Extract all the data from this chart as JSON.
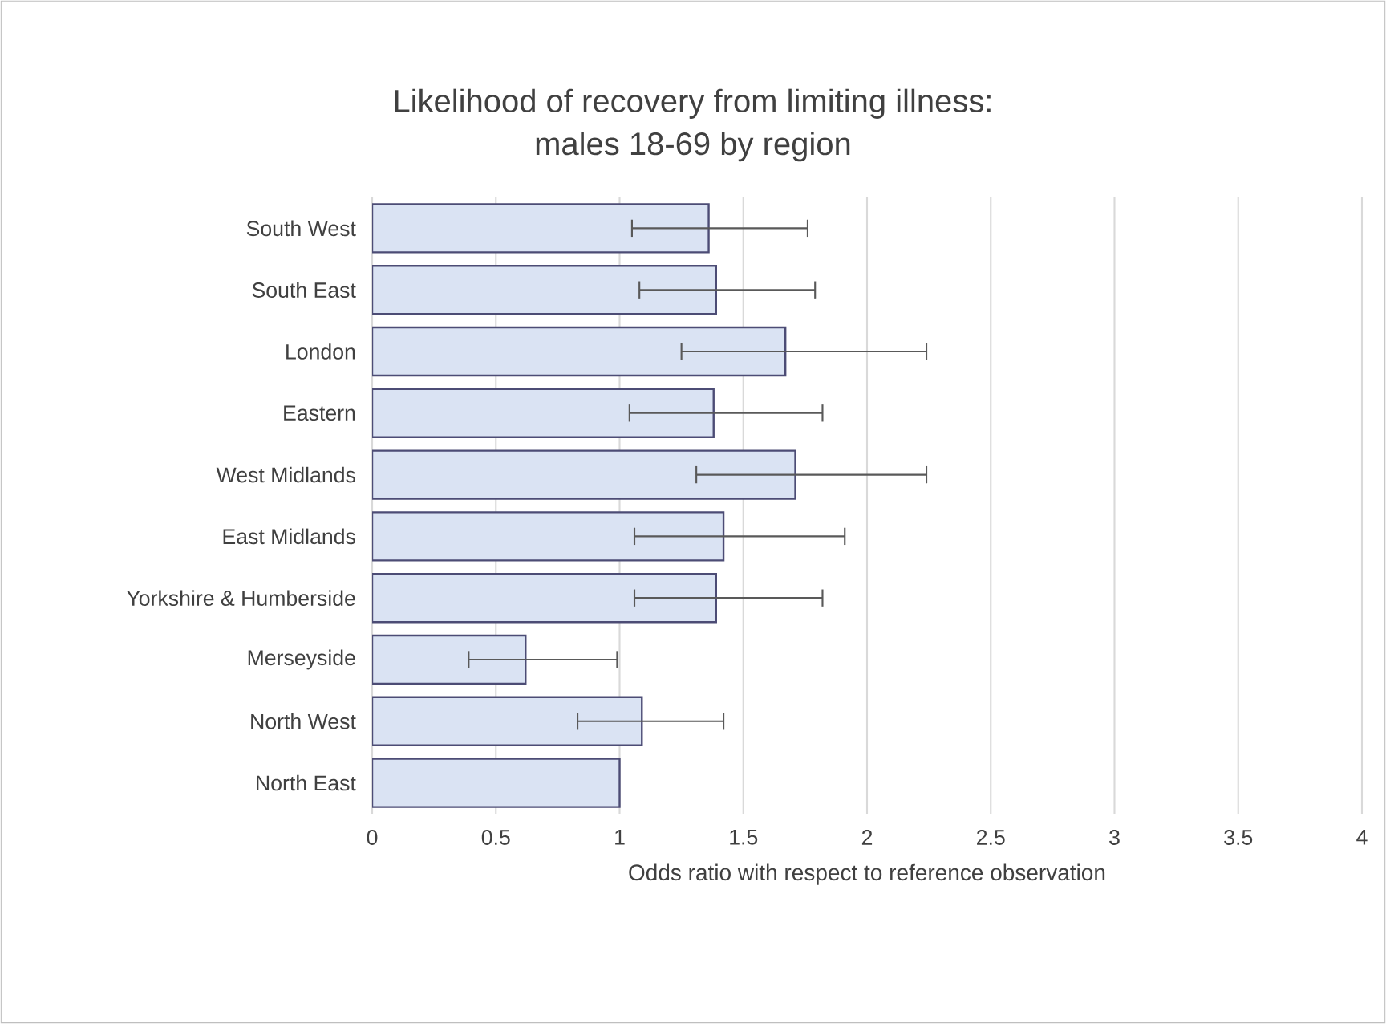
{
  "chart_data": {
    "type": "bar",
    "orientation": "horizontal",
    "title": "Likelihood of recovery from limiting illness:\nmales 18-69 by region",
    "xlabel": "Odds ratio with respect to reference observation",
    "categories": [
      "South West",
      "South East",
      "London",
      "Eastern",
      "West Midlands",
      "East Midlands",
      "Yorkshire & Humberside",
      "Merseyside",
      "North West",
      "North East"
    ],
    "values": [
      1.36,
      1.39,
      1.67,
      1.38,
      1.71,
      1.42,
      1.39,
      0.62,
      1.09,
      1.0
    ],
    "errors": [
      [
        1.05,
        1.76
      ],
      [
        1.08,
        1.79
      ],
      [
        1.25,
        2.24
      ],
      [
        1.04,
        1.82
      ],
      [
        1.31,
        2.24
      ],
      [
        1.06,
        1.91
      ],
      [
        1.06,
        1.82
      ],
      [
        0.39,
        0.99
      ],
      [
        0.83,
        1.42
      ],
      null
    ],
    "color": "#dae3f3",
    "xlim": [
      0,
      4
    ],
    "xticks": [
      0,
      0.5,
      1,
      1.5,
      2,
      2.5,
      3,
      3.5,
      4
    ],
    "grid": "x"
  }
}
